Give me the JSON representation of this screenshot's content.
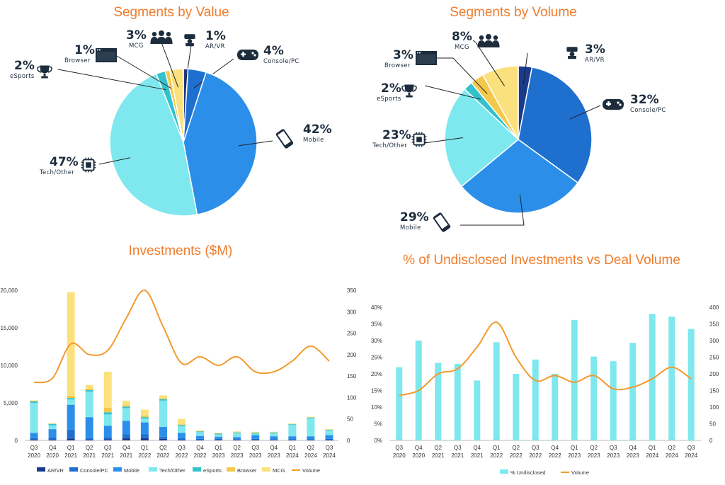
{
  "titles": {
    "value": "Segments by Value",
    "volume": "Segments by Volume",
    "investments": "Investments ($M)",
    "undisclosed": "% of Undisclosed Investments vs Deal Volume"
  },
  "chart_data": [
    {
      "type": "pie",
      "title": "Segments by Value",
      "slices": [
        {
          "label": "AR/VR",
          "value": 1,
          "pct": "1%",
          "color": "#1a3a8a",
          "icon": "vr-headset-icon"
        },
        {
          "label": "Console/PC",
          "value": 4,
          "pct": "4%",
          "color": "#1f6fcf",
          "icon": "gamepad-icon"
        },
        {
          "label": "Mobile",
          "value": 42,
          "pct": "42%",
          "color": "#2b8fea",
          "icon": "phone-icon"
        },
        {
          "label": "Tech/Other",
          "value": 47,
          "pct": "47%",
          "color": "#7ee8ee",
          "icon": "chip-icon"
        },
        {
          "label": "eSports",
          "value": 2,
          "pct": "2%",
          "color": "#33c2cc",
          "icon": "trophy-icon"
        },
        {
          "label": "Browser",
          "value": 1,
          "pct": "1%",
          "color": "#f4c84a",
          "icon": "browser-icon"
        },
        {
          "label": "MCG",
          "value": 3,
          "pct": "3%",
          "color": "#fbe07e",
          "icon": "people-icon"
        }
      ]
    },
    {
      "type": "pie",
      "title": "Segments by Volume",
      "slices": [
        {
          "label": "AR/VR",
          "value": 3,
          "pct": "3%",
          "color": "#1a3a8a",
          "icon": "vr-headset-icon"
        },
        {
          "label": "Console/PC",
          "value": 32,
          "pct": "32%",
          "color": "#1f6fcf",
          "icon": "gamepad-icon"
        },
        {
          "label": "Mobile",
          "value": 29,
          "pct": "29%",
          "color": "#2b8fea",
          "icon": "phone-icon"
        },
        {
          "label": "Tech/Other",
          "value": 23,
          "pct": "23%",
          "color": "#7ee8ee",
          "icon": "chip-icon"
        },
        {
          "label": "eSports",
          "value": 2,
          "pct": "2%",
          "color": "#33c2cc",
          "icon": "trophy-icon"
        },
        {
          "label": "Browser",
          "value": 3,
          "pct": "3%",
          "color": "#f4c84a",
          "icon": "browser-icon"
        },
        {
          "label": "MCG",
          "value": 8,
          "pct": "8%",
          "color": "#fbe07e",
          "icon": "people-icon"
        }
      ]
    },
    {
      "type": "bar",
      "stacked": true,
      "title": "Investments ($M)",
      "categories": [
        [
          "Q3",
          "2020"
        ],
        [
          "Q4",
          "2020"
        ],
        [
          "Q1",
          "2021"
        ],
        [
          "Q2",
          "2021"
        ],
        [
          "Q3",
          "2021"
        ],
        [
          "Q4",
          "2021"
        ],
        [
          "Q1",
          "2022"
        ],
        [
          "Q2",
          "2022"
        ],
        [
          "Q3",
          "2022"
        ],
        [
          "Q4",
          "2022"
        ],
        [
          "Q1",
          "2023"
        ],
        [
          "Q2",
          "2023"
        ],
        [
          "Q3",
          "2023"
        ],
        [
          "Q4",
          "2023"
        ],
        [
          "Q1",
          "2024"
        ],
        [
          "Q2",
          "2024"
        ],
        [
          "Q3",
          "2024"
        ]
      ],
      "ylim": [
        0,
        20000
      ],
      "yticks": [
        "0",
        "5,000",
        "10,000",
        "15,000",
        "20,000"
      ],
      "y2lim": [
        0,
        350
      ],
      "y2ticks": [
        "0",
        "50",
        "100",
        "150",
        "200",
        "250",
        "300",
        "350"
      ],
      "series": [
        {
          "name": "AR/VR",
          "color": "#1a3a8a",
          "values": [
            100,
            100,
            250,
            100,
            150,
            300,
            300,
            200,
            100,
            50,
            50,
            50,
            50,
            50,
            50,
            50,
            50
          ]
        },
        {
          "name": "Console/PC",
          "color": "#1f6fcf",
          "values": [
            200,
            300,
            1200,
            200,
            300,
            500,
            500,
            300,
            200,
            150,
            150,
            100,
            150,
            100,
            100,
            100,
            150
          ]
        },
        {
          "name": "Mobile",
          "color": "#2b8fea",
          "values": [
            700,
            1100,
            3300,
            2800,
            1500,
            1800,
            1600,
            1300,
            700,
            400,
            300,
            300,
            500,
            400,
            400,
            400,
            500
          ]
        },
        {
          "name": "Tech/Other",
          "color": "#7ee8ee",
          "values": [
            4000,
            500,
            700,
            3400,
            1500,
            1700,
            500,
            3500,
            900,
            500,
            300,
            500,
            200,
            400,
            1500,
            2400,
            600
          ]
        },
        {
          "name": "eSports",
          "color": "#33c2cc",
          "values": [
            200,
            200,
            200,
            200,
            300,
            200,
            200,
            200,
            150,
            100,
            100,
            100,
            100,
            100,
            100,
            100,
            100
          ]
        },
        {
          "name": "Browser",
          "color": "#f4c84a",
          "values": [
            50,
            50,
            300,
            200,
            600,
            200,
            200,
            100,
            100,
            50,
            50,
            50,
            50,
            50,
            50,
            50,
            50
          ]
        },
        {
          "name": "MCG",
          "color": "#fbe07e",
          "values": [
            100,
            50,
            13800,
            500,
            4800,
            600,
            800,
            400,
            700,
            100,
            50,
            100,
            100,
            50,
            50,
            50,
            50
          ]
        }
      ],
      "line": {
        "name": "Volume",
        "color": "#f39a2c",
        "values": [
          135,
          145,
          225,
          200,
          210,
          285,
          350,
          265,
          180,
          195,
          175,
          195,
          160,
          160,
          185,
          220,
          185
        ]
      },
      "legend_position": "bottom"
    },
    {
      "type": "bar",
      "title": "% of Undisclosed Investments vs Deal Volume",
      "categories": [
        [
          "Q3",
          "2020"
        ],
        [
          "Q4",
          "2020"
        ],
        [
          "Q2",
          "2021"
        ],
        [
          "Q3",
          "2021"
        ],
        [
          "Q4",
          "2021"
        ],
        [
          "Q1",
          "2022"
        ],
        [
          "Q2",
          "2022"
        ],
        [
          "Q3",
          "2022"
        ],
        [
          "Q4",
          "2022"
        ],
        [
          "Q1",
          "2023"
        ],
        [
          "Q2",
          "2023"
        ],
        [
          "Q3",
          "2023"
        ],
        [
          "Q4",
          "2023"
        ],
        [
          "Q1",
          "2024"
        ],
        [
          "Q2",
          "2024"
        ],
        [
          "Q3",
          "2024"
        ]
      ],
      "ylim": [
        0,
        40
      ],
      "yticks": [
        "0%",
        "5%",
        "10%",
        "15%",
        "20%",
        "25%",
        "30%",
        "35%",
        "40%"
      ],
      "y2lim": [
        0,
        400
      ],
      "y2ticks": [
        "0",
        "50",
        "100",
        "150",
        "200",
        "250",
        "300",
        "350",
        "400"
      ],
      "series": [
        {
          "name": "% Undisclosed",
          "color": "#7ee8ee",
          "values": [
            22,
            30,
            23.3,
            23,
            18,
            29.5,
            20,
            24.3,
            20,
            36.2,
            25.2,
            23.8,
            29.3,
            38,
            37.2,
            33.5
          ]
        }
      ],
      "line": {
        "name": "Volume",
        "color": "#f39a2c",
        "values": [
          135,
          150,
          200,
          215,
          280,
          355,
          250,
          180,
          195,
          175,
          195,
          155,
          160,
          185,
          220,
          185
        ]
      },
      "legend_position": "bottom"
    }
  ]
}
